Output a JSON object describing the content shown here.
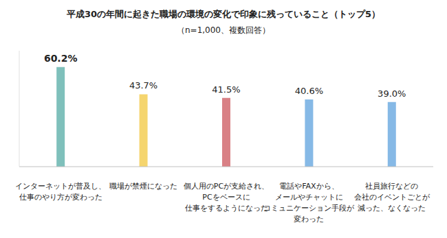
{
  "chart_data": {
    "type": "bar",
    "title": "平成30の年間に起きた職場の環境の変化で印象に残っていること（トップ5）",
    "subtitle": "（n=1,000、複数回答）",
    "categories": [
      "インターネットが普及し、\n仕事のやり方が変わった",
      "職場が禁煙になった",
      "個人用のPCが支給され、\nPCをベースに\n仕事をするようになった",
      "電話やFAXから、\nメールやチャットに\nコミュニケーション手段が\n変わった",
      "社員旅行などの\n会社のイベントごとが\n減った、なくなった"
    ],
    "values": [
      60.2,
      43.7,
      41.5,
      40.6,
      39.0
    ],
    "value_labels": [
      "60.2%",
      "43.7%",
      "41.5%",
      "40.6%",
      "39.0%"
    ],
    "colors": [
      "#7fc0bb",
      "#f5d56e",
      "#d98085",
      "#86b9e6",
      "#86b9e6"
    ],
    "ylim": [
      0,
      70
    ],
    "data_labels": true,
    "tick_labels": "x",
    "grid": false
  }
}
